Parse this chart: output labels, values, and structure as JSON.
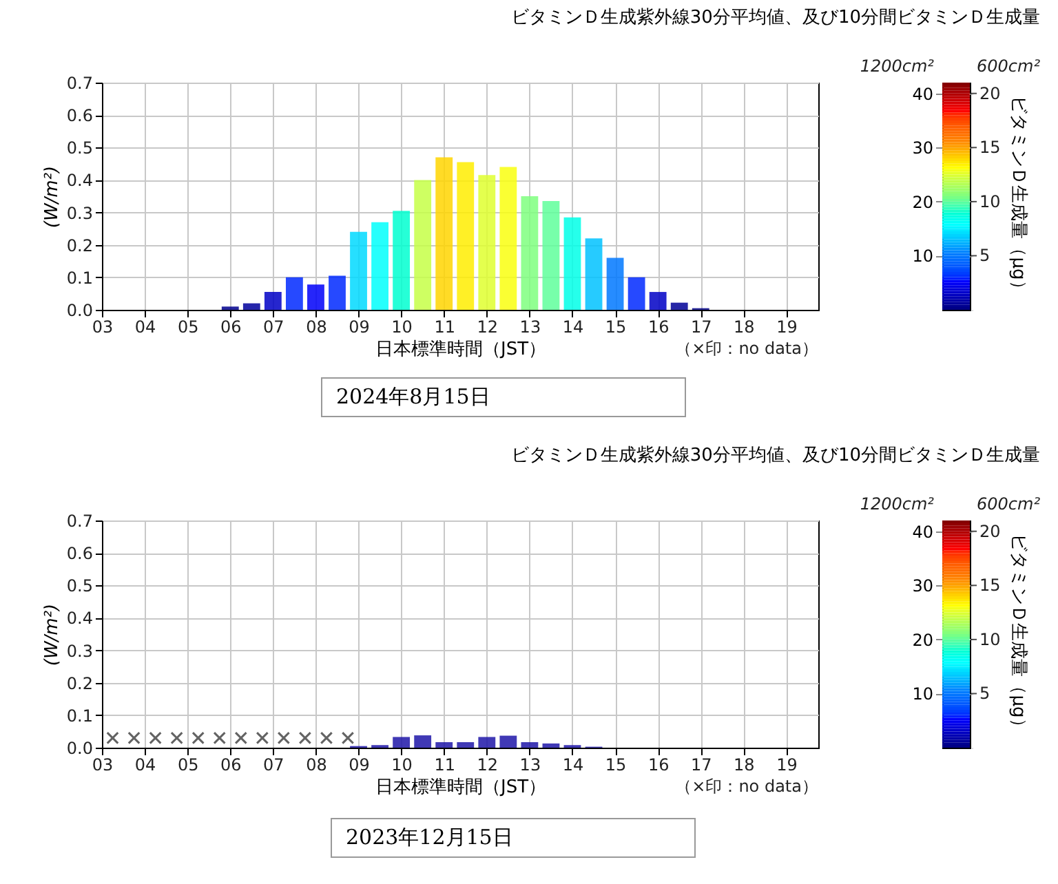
{
  "chart_data": [
    {
      "type": "bar",
      "title": "ビタミンＤ生成紫外線30分平均値、及び10分間ビタミンＤ生成量",
      "xlabel": "日本標準時間（JST）",
      "ylabel": "(W/m²)",
      "clabel": "ビタミンＤ生成量（μg）",
      "annotations": [
        "（×印：no data）",
        "1200cm²",
        "600cm²",
        "2024年8月15日",
        "5",
        "10",
        "15",
        "20"
      ],
      "x": [
        6,
        6.5,
        7,
        7.5,
        8,
        8.5,
        9,
        9.5,
        10,
        10.5,
        11,
        11.5,
        12,
        12.5,
        13,
        13.5,
        14,
        14.5,
        15,
        15.5,
        16,
        16.5,
        17
      ],
      "values": [
        0.01,
        0.02,
        0.055,
        0.1,
        0.078,
        0.105,
        0.24,
        0.27,
        0.305,
        0.4,
        0.47,
        0.455,
        0.415,
        0.44,
        0.35,
        0.335,
        0.285,
        0.22,
        0.16,
        0.1,
        0.055,
        0.022,
        0.005
      ],
      "cvalues": [
        0.6,
        1.2,
        3,
        6,
        5,
        6,
        14,
        16,
        18,
        24,
        28,
        27,
        25,
        26,
        21,
        20,
        17,
        13,
        10,
        6,
        3,
        1,
        0.3
      ],
      "xlim": [
        3,
        19.75
      ],
      "xticks": [
        {
          "value": 3,
          "label": "03"
        },
        {
          "value": 4,
          "label": "04"
        },
        {
          "value": 5,
          "label": "05"
        },
        {
          "value": 6,
          "label": "06"
        },
        {
          "value": 7,
          "label": "07"
        },
        {
          "value": 8,
          "label": "08"
        },
        {
          "value": 9,
          "label": "09"
        },
        10,
        11,
        12,
        13,
        14,
        15,
        16,
        17,
        18,
        19
      ],
      "ylim": [
        0,
        0.7
      ],
      "yticks": [
        {
          "value": 0,
          "label": "0.0"
        },
        0.1,
        0.2,
        0.3,
        0.4,
        0.5,
        0.6,
        0.7
      ],
      "clim": [
        0,
        42
      ],
      "cticks": [
        10,
        20,
        30,
        40
      ],
      "grid": true
    },
    {
      "type": "bar",
      "title": "ビタミンＤ生成紫外線30分平均値、及び10分間ビタミンＤ生成量",
      "xlabel": "日本標準時間（JST）",
      "ylabel": "(W/m²)",
      "clabel": "ビタミンＤ生成量（μg）",
      "annotations": [
        "（×印：no data）",
        "1200cm²",
        "600cm²",
        "2023年12月15日",
        "5",
        "10",
        "15",
        "20"
      ],
      "series": [
        {
          "x": [
            9,
            9.5,
            10,
            10.5,
            11,
            11.5,
            12,
            12.5,
            13,
            13.5,
            14,
            14.5
          ],
          "values": [
            0.005,
            0.008,
            0.033,
            0.038,
            0.017,
            0.017,
            0.033,
            0.037,
            0.017,
            0.013,
            0.008,
            0.003
          ],
          "color": "#1f16a8"
        },
        {
          "type": "scatter",
          "x": [
            3.25,
            3.75,
            4.25,
            4.75,
            5.25,
            5.75,
            6.25,
            6.75,
            7.25,
            7.75,
            8.25,
            8.75
          ],
          "values": [
            0.03,
            0.03,
            0.03,
            0.03,
            0.03,
            0.03,
            0.03,
            0.03,
            0.03,
            0.03,
            0.03,
            0.03
          ],
          "color": "#222222",
          "marker": "cross"
        }
      ],
      "xlim": [
        3,
        19.75
      ],
      "xticks": [
        {
          "value": 3,
          "label": "03"
        },
        {
          "value": 4,
          "label": "04"
        },
        {
          "value": 5,
          "label": "05"
        },
        {
          "value": 6,
          "label": "06"
        },
        {
          "value": 7,
          "label": "07"
        },
        {
          "value": 8,
          "label": "08"
        },
        {
          "value": 9,
          "label": "09"
        },
        10,
        11,
        12,
        13,
        14,
        15,
        16,
        17,
        18,
        19
      ],
      "ylim": [
        0,
        0.7
      ],
      "yticks": [
        {
          "value": 0,
          "label": "0.0"
        },
        0.1,
        0.2,
        0.3,
        0.4,
        0.5,
        0.6,
        0.7
      ],
      "clim": [
        0,
        42
      ],
      "cticks": [
        10,
        20,
        30,
        40
      ],
      "grid": true
    }
  ]
}
